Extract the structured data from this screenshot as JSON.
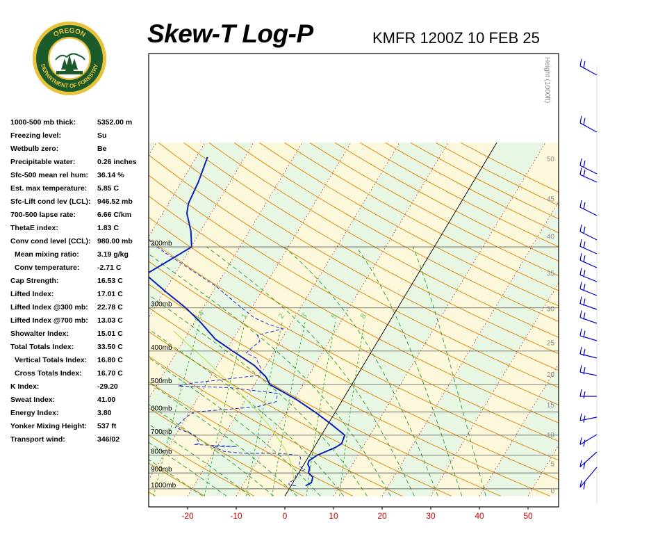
{
  "logo": {
    "text_top": "OREGON",
    "text_bottom": "DEPARTMENT OF FORESTRY"
  },
  "header": {
    "title": "Skew-T Log-P",
    "subtitle": "KMFR 1200Z 10 FEB 25"
  },
  "indices": [
    {
      "label": "1000-500 mb thick:",
      "value": "5352.00 m",
      "indent": false
    },
    {
      "label": "Freezing level:",
      "value": "Su",
      "indent": false
    },
    {
      "label": "Wetbulb zero:",
      "value": "Be",
      "indent": false
    },
    {
      "label": "Precipitable water:",
      "value": "0.26 inches",
      "indent": false
    },
    {
      "label": "Sfc-500 mean rel hum:",
      "value": "36.14 %",
      "indent": false
    },
    {
      "label": "Est. max temperature:",
      "value": "5.85 C",
      "indent": false
    },
    {
      "label": "Sfc-Lift cond lev (LCL):",
      "value": "946.52 mb",
      "indent": false
    },
    {
      "label": "700-500 lapse rate:",
      "value": "6.66 C/km",
      "indent": false
    },
    {
      "label": "ThetaE index:",
      "value": "1.83 C",
      "indent": false
    },
    {
      "label": "Conv cond level (CCL):",
      "value": "980.00 mb",
      "indent": false
    },
    {
      "label": "Mean mixing ratio:",
      "value": "3.19 g/kg",
      "indent": true
    },
    {
      "label": "Conv temperature:",
      "value": "-2.71 C",
      "indent": true
    },
    {
      "label": "Cap Strength:",
      "value": "16.53 C",
      "indent": false
    },
    {
      "label": "Lifted Index:",
      "value": "17.01 C",
      "indent": false
    },
    {
      "label": "Lifted Index @300 mb:",
      "value": "22.78 C",
      "indent": false
    },
    {
      "label": "Lifted Index @700 mb:",
      "value": "13.03 C",
      "indent": false
    },
    {
      "label": "Showalter Index:",
      "value": "15.01 C",
      "indent": false
    },
    {
      "label": "Total Totals Index:",
      "value": "33.50 C",
      "indent": false
    },
    {
      "label": "Vertical Totals Index:",
      "value": "16.80 C",
      "indent": true
    },
    {
      "label": "Cross Totals Index:",
      "value": "16.70 C",
      "indent": true
    },
    {
      "label": "K Index:",
      "value": "-29.20",
      "indent": false
    },
    {
      "label": "Sweat Index:",
      "value": "41.00",
      "indent": false
    },
    {
      "label": "Energy Index:",
      "value": "3.80",
      "indent": false
    },
    {
      "label": "Yonker Mixing Height:",
      "value": "537 ft",
      "indent": false
    },
    {
      "label": "Transport wind:",
      "value": "346/02",
      "indent": false
    }
  ],
  "colors": {
    "temperature": "#0a1fb4",
    "dewpoint": "#2233cc",
    "parcel": "#c8e060",
    "dry_adiabat": "#e08a10",
    "moist_adiabat": "#2a9a2a",
    "mixing_ratio": "#22aa22",
    "isotherm": "#cc1111",
    "isobar": "#555555",
    "band_green": "#e8f6e4",
    "band_yellow": "#fbf8dc",
    "axis_label": "#cc0000",
    "height_label": "#888888",
    "wind_barb": "#0000cc"
  },
  "chart_data": {
    "type": "skew-t log-p",
    "x_axis": {
      "ticks": [
        -20,
        -10,
        0,
        10,
        20,
        30,
        40,
        50
      ],
      "units": "C"
    },
    "pressure_levels": [
      {
        "p": 200,
        "label": "200mb"
      },
      {
        "p": 300,
        "label": "300mb"
      },
      {
        "p": 400,
        "label": "400mb"
      },
      {
        "p": 500,
        "label": "500mb"
      },
      {
        "p": 600,
        "label": "600mb"
      },
      {
        "p": 700,
        "label": "700mb"
      },
      {
        "p": 800,
        "label": "800mb"
      },
      {
        "p": 900,
        "label": "900mb"
      },
      {
        "p": 1000,
        "label": "1000mb"
      }
    ],
    "height_axis": {
      "title": "Height (1000ft)",
      "ticks": [
        {
          "p": 1012,
          "label": "0"
        },
        {
          "p": 845,
          "label": "5"
        },
        {
          "p": 697,
          "label": "10"
        },
        {
          "p": 572,
          "label": "15"
        },
        {
          "p": 466,
          "label": "20"
        },
        {
          "p": 378,
          "label": "25"
        },
        {
          "p": 301,
          "label": "30"
        },
        {
          "p": 238,
          "label": "35"
        },
        {
          "p": 186,
          "label": "40"
        },
        {
          "p": 145,
          "label": "45"
        },
        {
          "p": 111,
          "label": "50"
        }
      ]
    },
    "mixing_ratio_labels": [
      "0.4",
      "1",
      "2",
      "3",
      "5",
      "8"
    ],
    "mixing_ratio_values": [
      0.4,
      1,
      2,
      3,
      5,
      8
    ],
    "temperature": [
      {
        "p": 980,
        "t": 3.0
      },
      {
        "p": 960,
        "t": 3.8
      },
      {
        "p": 925,
        "t": 3.4
      },
      {
        "p": 900,
        "t": 2.0
      },
      {
        "p": 870,
        "t": 1.6
      },
      {
        "p": 850,
        "t": 0.8
      },
      {
        "p": 830,
        "t": 0.6
      },
      {
        "p": 800,
        "t": 1.6
      },
      {
        "p": 760,
        "t": 4.4
      },
      {
        "p": 740,
        "t": 5.2
      },
      {
        "p": 700,
        "t": 4.8
      },
      {
        "p": 650,
        "t": 0.6
      },
      {
        "p": 600,
        "t": -4.2
      },
      {
        "p": 550,
        "t": -9.8
      },
      {
        "p": 500,
        "t": -16.8
      },
      {
        "p": 475,
        "t": -18.6
      },
      {
        "p": 440,
        "t": -22.4
      },
      {
        "p": 400,
        "t": -28.6
      },
      {
        "p": 370,
        "t": -33.6
      },
      {
        "p": 330,
        "t": -38.8
      },
      {
        "p": 300,
        "t": -43.6
      },
      {
        "p": 270,
        "t": -49.6
      },
      {
        "p": 240,
        "t": -56.0
      },
      {
        "p": 235,
        "t": -55.2
      },
      {
        "p": 200,
        "t": -49.9
      },
      {
        "p": 180,
        "t": -52.0
      },
      {
        "p": 160,
        "t": -55.0
      },
      {
        "p": 150,
        "t": -55.9
      },
      {
        "p": 130,
        "t": -56.5
      },
      {
        "p": 110,
        "t": -57.7
      }
    ],
    "dewpoint": [
      {
        "p": 980,
        "t": 1.0
      },
      {
        "p": 975,
        "t": -0.5
      },
      {
        "p": 960,
        "t": -0.8
      },
      {
        "p": 940,
        "t": 0.0
      },
      {
        "p": 910,
        "t": -0.4
      },
      {
        "p": 880,
        "t": 0.8
      },
      {
        "p": 860,
        "t": -0.8
      },
      {
        "p": 850,
        "t": -1.0
      },
      {
        "p": 830,
        "t": -1.2
      },
      {
        "p": 810,
        "t": -1.6
      },
      {
        "p": 800,
        "t": -2.4
      },
      {
        "p": 790,
        "t": -6.4
      },
      {
        "p": 790,
        "t": -13.6
      },
      {
        "p": 780,
        "t": -18.0
      },
      {
        "p": 755,
        "t": -21.0
      },
      {
        "p": 755,
        "t": -16.0
      },
      {
        "p": 745,
        "t": -25.0
      },
      {
        "p": 740,
        "t": -24.0
      },
      {
        "p": 700,
        "t": -26.0
      },
      {
        "p": 665,
        "t": -31.0
      },
      {
        "p": 620,
        "t": -30.0
      },
      {
        "p": 600,
        "t": -29.0
      },
      {
        "p": 580,
        "t": -16.8
      },
      {
        "p": 560,
        "t": -13.4
      },
      {
        "p": 530,
        "t": -14.2
      },
      {
        "p": 510,
        "t": -24.8
      },
      {
        "p": 505,
        "t": -35.5
      },
      {
        "p": 495,
        "t": -33.0
      },
      {
        "p": 470,
        "t": -20.2
      },
      {
        "p": 450,
        "t": -20.5
      },
      {
        "p": 435,
        "t": -21.8
      },
      {
        "p": 420,
        "t": -22.8
      },
      {
        "p": 405,
        "t": -25.6
      },
      {
        "p": 390,
        "t": -25.0
      },
      {
        "p": 375,
        "t": -24.2
      },
      {
        "p": 360,
        "t": -25.5
      },
      {
        "p": 345,
        "t": -21.0
      },
      {
        "p": 335,
        "t": -24.5
      },
      {
        "p": 320,
        "t": -28.4
      },
      {
        "p": 290,
        "t": -34.0
      },
      {
        "p": 260,
        "t": -40.0
      },
      {
        "p": 230,
        "t": -48.0
      },
      {
        "p": 210,
        "t": -54.0
      },
      {
        "p": 195,
        "t": -58.6
      },
      {
        "p": 180,
        "t": -62.0
      },
      {
        "p": 150,
        "t": -70.0
      },
      {
        "p": 130,
        "t": -76.0
      },
      {
        "p": 110,
        "t": -82.0
      }
    ],
    "parcel": [
      {
        "p": 946,
        "t": 0.0
      },
      {
        "p": 900,
        "t": -1.2
      },
      {
        "p": 850,
        "t": -2.6
      },
      {
        "p": 800,
        "t": -4.4
      },
      {
        "p": 750,
        "t": -6.6
      },
      {
        "p": 700,
        "t": -9.4
      },
      {
        "p": 650,
        "t": -12.4
      },
      {
        "p": 600,
        "t": -16.0
      },
      {
        "p": 550,
        "t": -20.0
      },
      {
        "p": 500,
        "t": -24.6
      },
      {
        "p": 460,
        "t": -29.0
      },
      {
        "p": 420,
        "t": -33.6
      },
      {
        "p": 380,
        "t": -39.0
      },
      {
        "p": 350,
        "t": -43.2
      }
    ]
  }
}
